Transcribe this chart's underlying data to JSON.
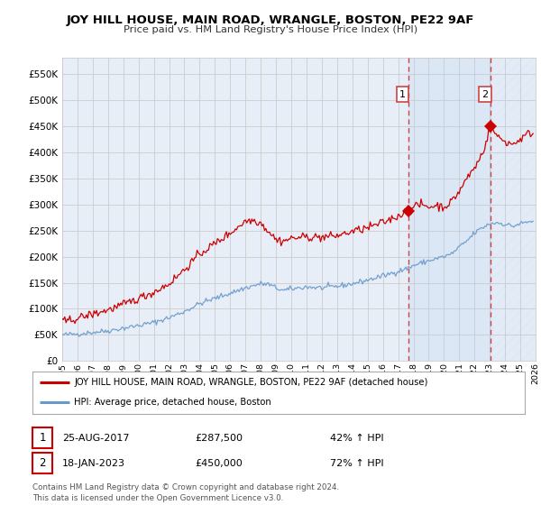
{
  "title": "JOY HILL HOUSE, MAIN ROAD, WRANGLE, BOSTON, PE22 9AF",
  "subtitle": "Price paid vs. HM Land Registry's House Price Index (HPI)",
  "red_label": "JOY HILL HOUSE, MAIN ROAD, WRANGLE, BOSTON, PE22 9AF (detached house)",
  "blue_label": "HPI: Average price, detached house, Boston",
  "annotation1": {
    "num": "1",
    "date": "25-AUG-2017",
    "price": "£287,500",
    "pct": "42% ↑ HPI"
  },
  "annotation2": {
    "num": "2",
    "date": "18-JAN-2023",
    "price": "£450,000",
    "pct": "72% ↑ HPI"
  },
  "footer": "Contains HM Land Registry data © Crown copyright and database right 2024.\nThis data is licensed under the Open Government Licence v3.0.",
  "ylim": [
    0,
    580000
  ],
  "yticks": [
    0,
    50000,
    100000,
    150000,
    200000,
    250000,
    300000,
    350000,
    400000,
    450000,
    500000,
    550000
  ],
  "bg_color": "#e8eef8",
  "grid_color": "#cccccc",
  "red_color": "#cc0000",
  "blue_color": "#6699cc",
  "vline1_x": 2017.65,
  "vline2_x": 2023.05,
  "point1_x": 2017.65,
  "point1_y": 287500,
  "point2_x": 2023.05,
  "point2_y": 450000,
  "xmin": 1995,
  "xmax": 2026
}
